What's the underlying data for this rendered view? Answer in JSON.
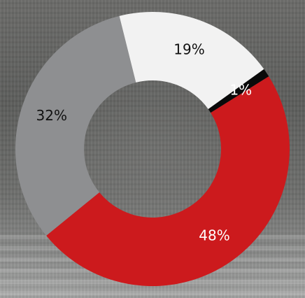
{
  "chart_data": {
    "type": "donut",
    "slices": [
      {
        "label": "48%",
        "value": 48,
        "color": "#cc1a1d",
        "text_color": "#ffffff"
      },
      {
        "label": "32%",
        "value": 32,
        "color": "#8e8f91",
        "text_color": "#111111"
      },
      {
        "label": "19%",
        "value": 19,
        "color": "#f2f2f2",
        "text_color": "#111111"
      },
      {
        "label": "1%",
        "value": 1,
        "color": "#0a0a0a",
        "text_color": "#ffffff"
      }
    ],
    "title": "",
    "legend": "none"
  }
}
